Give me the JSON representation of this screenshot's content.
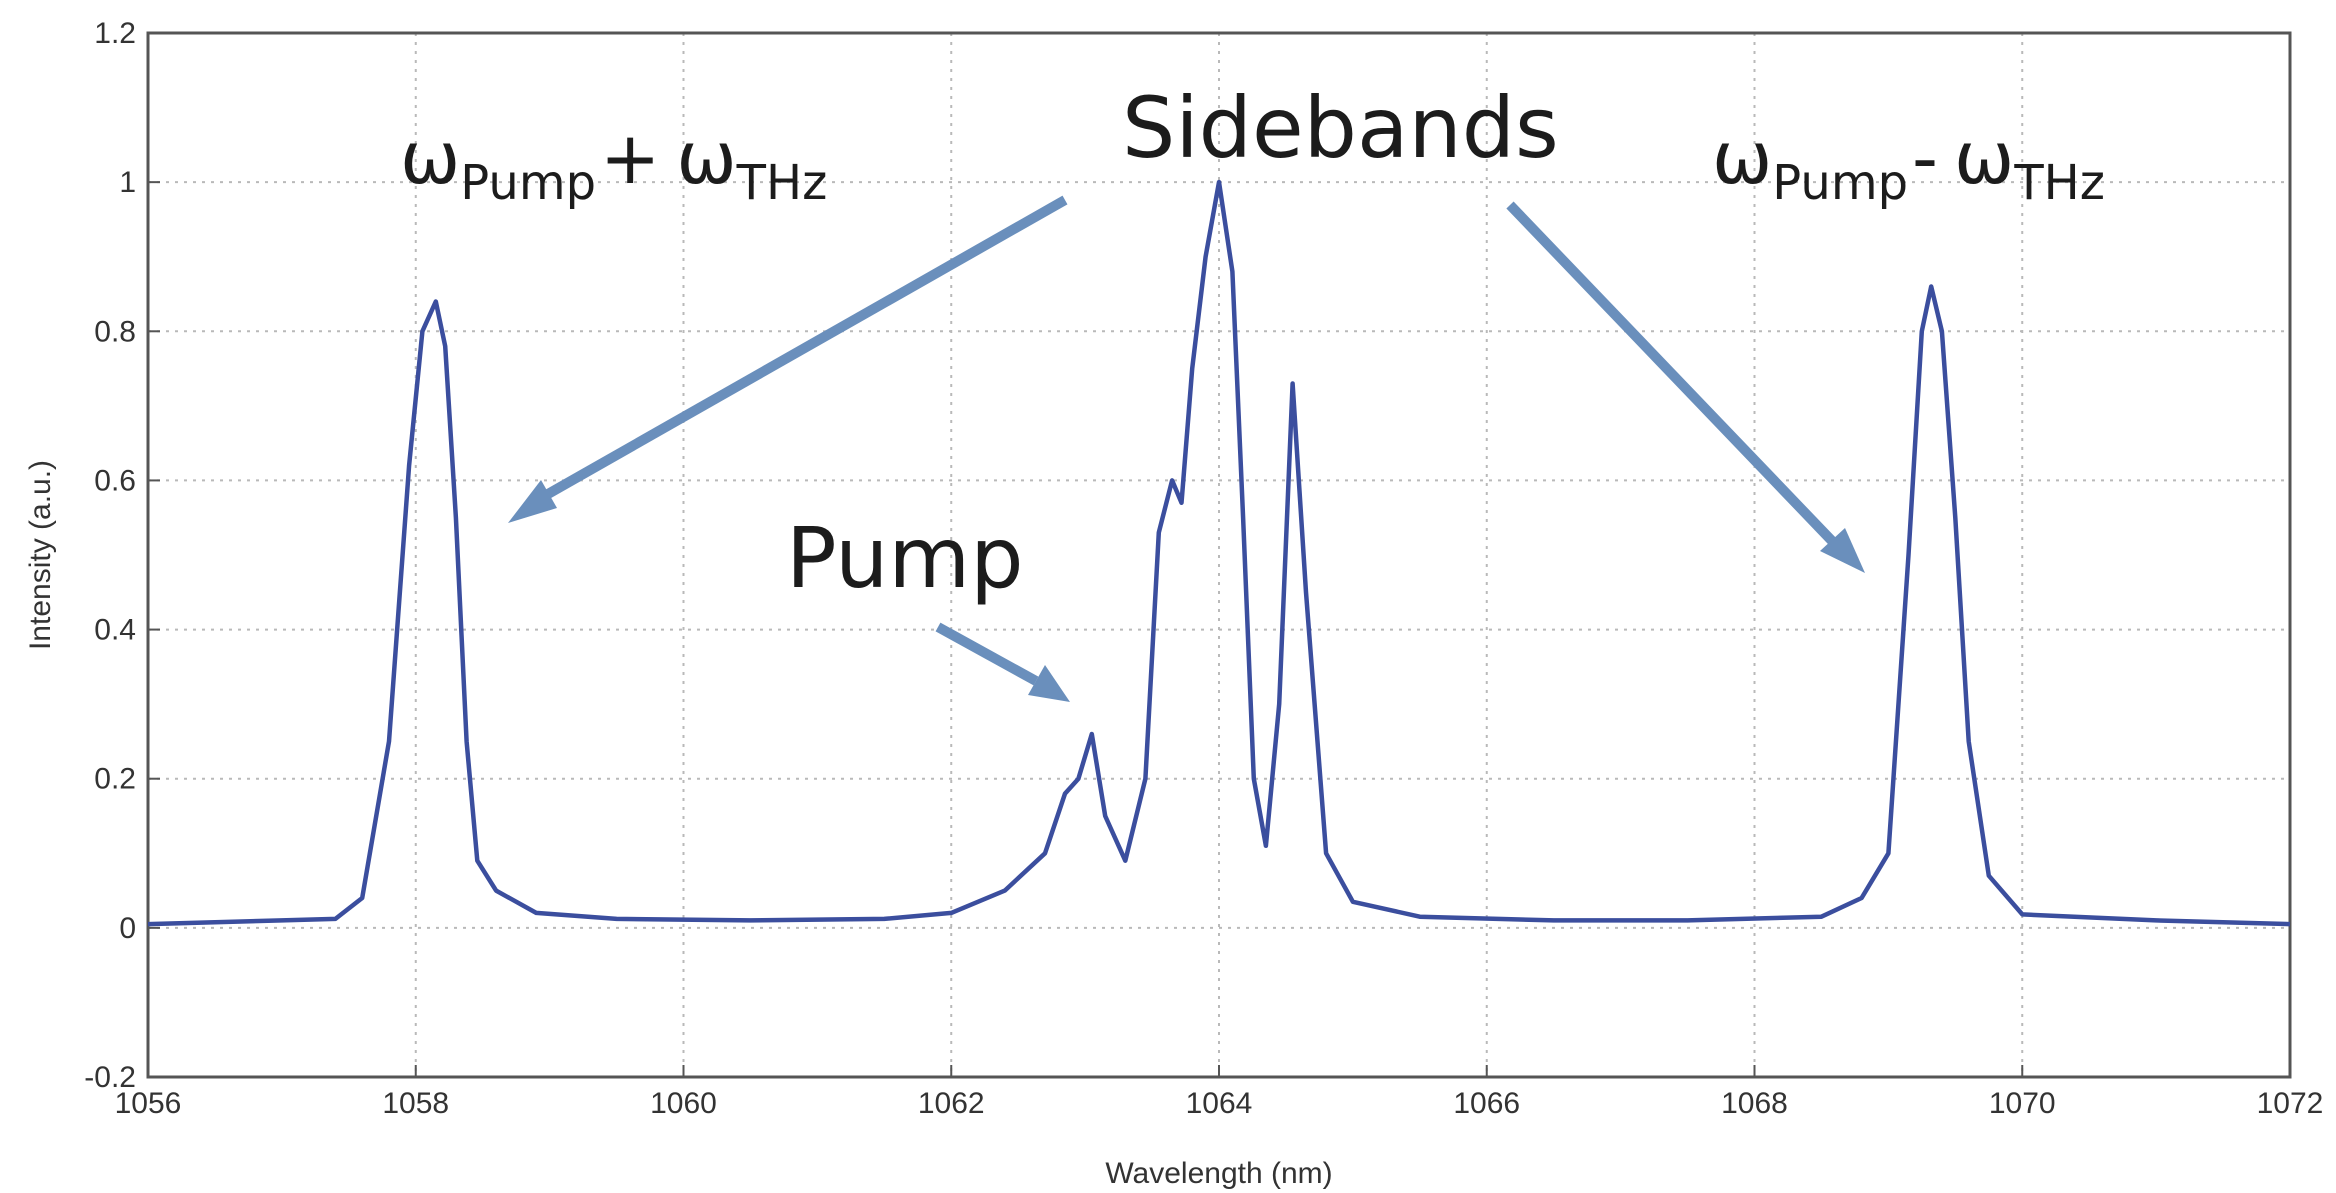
{
  "chart_data": {
    "type": "line",
    "xlabel": "Wavelength (nm)",
    "ylabel": "Intensity (a.u.)",
    "xlim": [
      1056,
      1072
    ],
    "ylim": [
      -0.2,
      1.2
    ],
    "x_ticks": [
      1056,
      1058,
      1060,
      1062,
      1064,
      1066,
      1068,
      1070,
      1072
    ],
    "y_ticks": [
      -0.2,
      0,
      0.2,
      0.4,
      0.6,
      0.8,
      1,
      1.2
    ],
    "x_tick_labels": [
      "1056",
      "1058",
      "1060",
      "1062",
      "1064",
      "1066",
      "1068",
      "1070",
      "1072"
    ],
    "y_tick_labels": [
      "-0.2",
      "0",
      "0.2",
      "0.4",
      "0.6",
      "0.8",
      "1",
      "1.2"
    ],
    "grid": true,
    "line_color": "#3b4e9e",
    "arrow_color": "#6a8fbc",
    "series": [
      {
        "x": [
          1056.0,
          1057.0,
          1057.4,
          1057.6,
          1057.8,
          1057.95,
          1058.05,
          1058.15,
          1058.22,
          1058.3,
          1058.38,
          1058.46,
          1058.6,
          1058.9,
          1059.5,
          1060.5,
          1061.5,
          1062.0,
          1062.4,
          1062.7,
          1062.85,
          1062.95,
          1063.05,
          1063.15,
          1063.3,
          1063.45,
          1063.55,
          1063.65,
          1063.72,
          1063.8,
          1063.9,
          1064.0,
          1064.1,
          1064.18,
          1064.26,
          1064.35,
          1064.45,
          1064.55,
          1064.65,
          1064.8,
          1065.0,
          1065.5,
          1066.5,
          1067.5,
          1068.5,
          1068.8,
          1069.0,
          1069.15,
          1069.25,
          1069.32,
          1069.4,
          1069.5,
          1069.6,
          1069.75,
          1070.0,
          1071.0,
          1072.0
        ],
        "y": [
          0.005,
          0.01,
          0.012,
          0.04,
          0.25,
          0.62,
          0.8,
          0.84,
          0.78,
          0.55,
          0.25,
          0.09,
          0.05,
          0.02,
          0.012,
          0.01,
          0.012,
          0.02,
          0.05,
          0.1,
          0.18,
          0.2,
          0.26,
          0.15,
          0.09,
          0.2,
          0.53,
          0.6,
          0.57,
          0.75,
          0.9,
          1.0,
          0.88,
          0.55,
          0.2,
          0.11,
          0.3,
          0.73,
          0.45,
          0.1,
          0.035,
          0.015,
          0.01,
          0.01,
          0.015,
          0.04,
          0.1,
          0.5,
          0.8,
          0.86,
          0.8,
          0.55,
          0.25,
          0.07,
          0.018,
          0.01,
          0.005
        ]
      }
    ],
    "annotations": {
      "sidebands": "Sidebands",
      "pump": "Pump",
      "omega": "ω",
      "pump_sub": "Pump",
      "thz_sub": "THz",
      "plus": "+",
      "minus": "-"
    }
  }
}
